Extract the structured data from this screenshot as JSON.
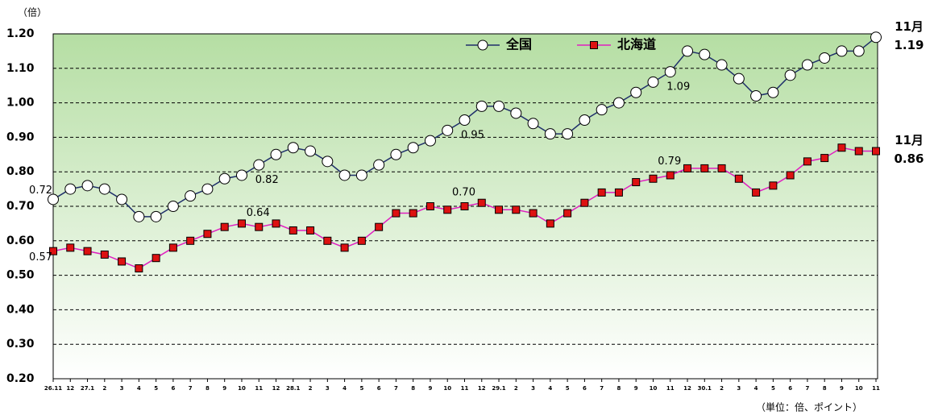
{
  "chart_data": {
    "type": "line",
    "y_unit": "（倍）",
    "footnote": "（単位：倍、ポイント）",
    "categories": [
      "26.11",
      "12",
      "27.1",
      "2",
      "3",
      "4",
      "5",
      "6",
      "7",
      "8",
      "9",
      "10",
      "11",
      "12",
      "28.1",
      "2",
      "3",
      "4",
      "5",
      "6",
      "7",
      "8",
      "9",
      "10",
      "11",
      "12",
      "29.1",
      "2",
      "3",
      "4",
      "5",
      "6",
      "7",
      "8",
      "9",
      "10",
      "11",
      "12",
      "30.1",
      "2",
      "3",
      "4",
      "5",
      "6",
      "7",
      "8",
      "9",
      "10",
      "11"
    ],
    "series": [
      {
        "name": "全国",
        "color": "#1f2f6b",
        "marker": "circle",
        "marker_fill": "#ffffff",
        "values": [
          0.72,
          0.75,
          0.76,
          0.75,
          0.72,
          0.67,
          0.67,
          0.7,
          0.73,
          0.75,
          0.78,
          0.79,
          0.82,
          0.85,
          0.87,
          0.86,
          0.83,
          0.79,
          0.79,
          0.82,
          0.85,
          0.87,
          0.89,
          0.92,
          0.95,
          0.99,
          0.99,
          0.97,
          0.94,
          0.91,
          0.91,
          0.95,
          0.98,
          1.0,
          1.03,
          1.06,
          1.09,
          1.15,
          1.14,
          1.11,
          1.07,
          1.02,
          1.03,
          1.08,
          1.11,
          1.13,
          1.15,
          1.15,
          1.19
        ],
        "value_labels": [
          "0.72",
          null,
          null,
          null,
          null,
          null,
          null,
          null,
          null,
          null,
          null,
          null,
          "0.82",
          null,
          null,
          null,
          null,
          null,
          null,
          null,
          null,
          null,
          null,
          null,
          "0.95",
          null,
          null,
          null,
          null,
          null,
          null,
          null,
          null,
          null,
          null,
          null,
          "1.09",
          null,
          null,
          null,
          null,
          null,
          null,
          null,
          null,
          null,
          null,
          null,
          "1.19"
        ],
        "end_annotation": "11月"
      },
      {
        "name": "北海道",
        "color": "#e020c0",
        "marker": "square",
        "marker_fill": "#dd1111",
        "values": [
          0.57,
          0.58,
          0.57,
          0.56,
          0.54,
          0.52,
          0.55,
          0.58,
          0.6,
          0.62,
          0.64,
          0.65,
          0.64,
          0.65,
          0.63,
          0.63,
          0.6,
          0.58,
          0.6,
          0.64,
          0.68,
          0.68,
          0.7,
          0.69,
          0.7,
          0.71,
          0.69,
          0.69,
          0.68,
          0.65,
          0.68,
          0.71,
          0.74,
          0.74,
          0.77,
          0.78,
          0.79,
          0.81,
          0.81,
          0.81,
          0.78,
          0.74,
          0.76,
          0.79,
          0.83,
          0.84,
          0.87,
          0.86,
          0.86
        ],
        "value_labels": [
          "0.57",
          null,
          null,
          null,
          null,
          null,
          null,
          null,
          null,
          null,
          null,
          null,
          "0.64",
          null,
          null,
          null,
          null,
          null,
          null,
          null,
          null,
          null,
          null,
          null,
          "0.70",
          null,
          null,
          null,
          null,
          null,
          null,
          null,
          null,
          null,
          null,
          null,
          "0.79",
          null,
          null,
          null,
          null,
          null,
          null,
          null,
          null,
          null,
          null,
          null,
          "0.86"
        ],
        "end_annotation": "11月"
      }
    ],
    "ylim": [
      0.2,
      1.2
    ],
    "yticks": [
      {
        "value": 0.2,
        "label": "0.20"
      },
      {
        "value": 0.3,
        "label": "0.30"
      },
      {
        "value": 0.4,
        "label": "0.40"
      },
      {
        "value": 0.5,
        "label": "0.50"
      },
      {
        "value": 0.6,
        "label": "0.60"
      },
      {
        "value": 0.7,
        "label": "0.70"
      },
      {
        "value": 0.8,
        "label": "0.80"
      },
      {
        "value": 0.9,
        "label": "0.90"
      },
      {
        "value": 1.0,
        "label": "1.00"
      },
      {
        "value": 1.1,
        "label": "1.10"
      },
      {
        "value": 1.2,
        "label": "1.20"
      }
    ],
    "grid": true,
    "legend": "top"
  }
}
